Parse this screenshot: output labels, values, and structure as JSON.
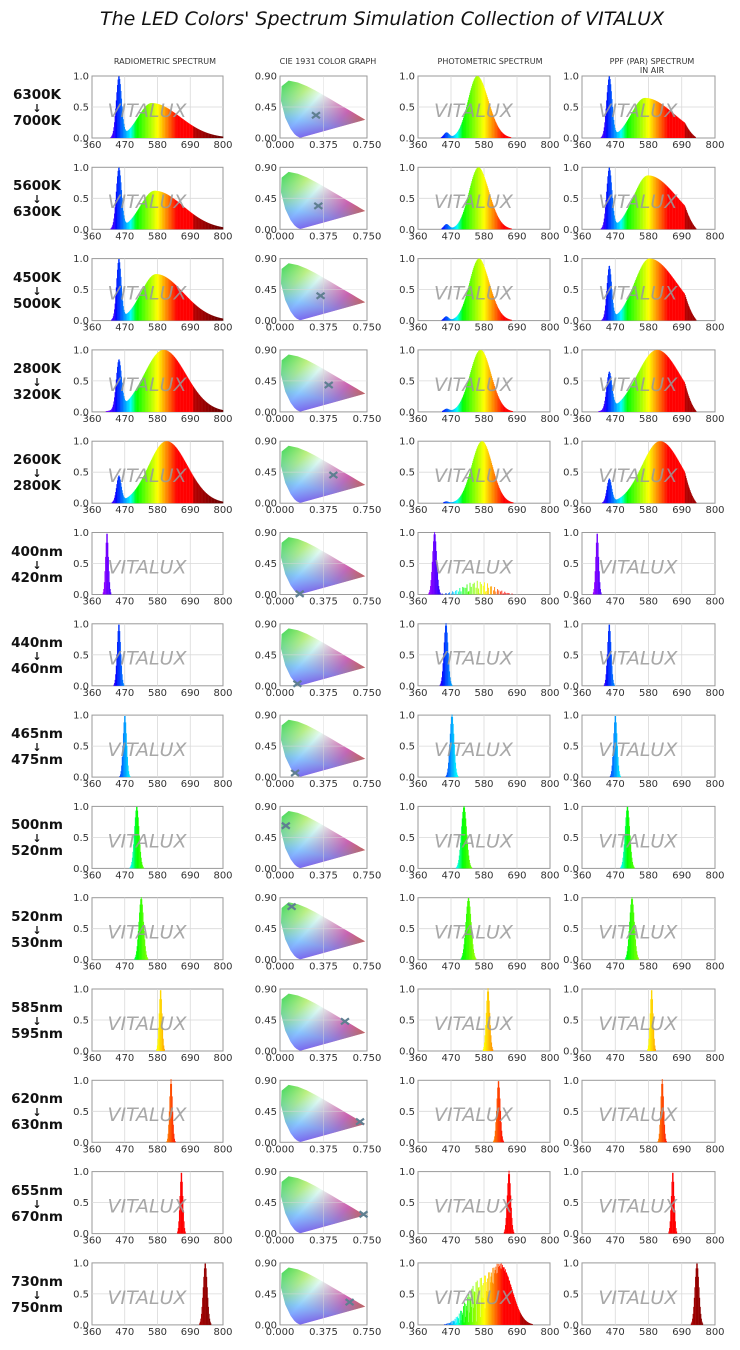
{
  "title": "The LED Colors' Spectrum Simulation Collection of VITALUX",
  "column_headers": [
    {
      "line1": "RADIOMETRIC SPECTRUM",
      "line2": ""
    },
    {
      "line1": "CIE 1931 COLOR GRAPH",
      "line2": ""
    },
    {
      "line1": "PHOTOMETRIC SPECTRUM",
      "line2": ""
    },
    {
      "line1": "PPF (PAR) SPECTRUM",
      "line2": "IN AIR"
    }
  ],
  "watermark": "VITALUX",
  "colors": {
    "axis": "#9a9a9a",
    "grid": "#d9d9d9",
    "marker": "#5f7f91"
  },
  "chart_data": {
    "type": "area",
    "spectrum_axis": {
      "x_ticks": [
        "360",
        "470",
        "580",
        "690",
        "800"
      ],
      "y_ticks": [
        "0.0",
        "0.5",
        "1.0"
      ],
      "xlim": [
        360,
        800
      ],
      "ylim": [
        0,
        1
      ]
    },
    "cie_axis": {
      "x_ticks": [
        "0.000",
        "0.375",
        "0.750"
      ],
      "y_ticks": [
        "0.00",
        "0.45",
        "0.90"
      ],
      "xlim": [
        0,
        0.75
      ],
      "ylim": [
        0,
        0.9
      ]
    },
    "rows": [
      {
        "label_top": "6300K",
        "label_bottom": "7000K",
        "kind": "white",
        "blue_amp": 1.0,
        "blue_peak": 450,
        "blue_width": 9,
        "phos_amp": 0.58,
        "phos_peak": 560,
        "phos_left": 45,
        "phos_right": 95,
        "cie": [
          0.31,
          0.33
        ],
        "ppf_blue": 1.0,
        "ppf_phos": 0.66
      },
      {
        "label_top": "5600K",
        "label_bottom": "6300K",
        "kind": "white",
        "blue_amp": 0.97,
        "blue_peak": 450,
        "blue_width": 9,
        "phos_amp": 0.62,
        "phos_peak": 570,
        "phos_left": 48,
        "phos_right": 95,
        "cie": [
          0.33,
          0.34
        ],
        "ppf_blue": 0.92,
        "ppf_phos": 0.82
      },
      {
        "label_top": "4500K",
        "label_bottom": "5000K",
        "kind": "white",
        "blue_amp": 0.98,
        "blue_peak": 450,
        "blue_width": 8,
        "phos_amp": 0.76,
        "phos_peak": 575,
        "phos_left": 50,
        "phos_right": 90,
        "cie": [
          0.35,
          0.36
        ],
        "ppf_blue": 0.86,
        "ppf_phos": 1.0
      },
      {
        "label_top": "2800K",
        "label_bottom": "3200K",
        "kind": "white",
        "blue_amp": 0.78,
        "blue_peak": 450,
        "blue_width": 9,
        "phos_amp": 1.0,
        "phos_peak": 600,
        "phos_left": 65,
        "phos_right": 75,
        "cie": [
          0.42,
          0.39
        ],
        "ppf_blue": 0.6,
        "ppf_phos": 1.0
      },
      {
        "label_top": "2600K",
        "label_bottom": "2800K",
        "kind": "white",
        "blue_amp": 0.42,
        "blue_peak": 450,
        "blue_width": 8,
        "phos_amp": 1.0,
        "phos_peak": 610,
        "phos_left": 60,
        "phos_right": 70,
        "cie": [
          0.46,
          0.41
        ],
        "ppf_blue": 0.38,
        "ppf_phos": 1.0
      },
      {
        "label_top": "400nm",
        "label_bottom": "420nm",
        "kind": "mono",
        "peak": 410,
        "width": 5,
        "cie": [
          0.17,
          0.01
        ],
        "photo": "violet"
      },
      {
        "label_top": "440nm",
        "label_bottom": "460nm",
        "kind": "mono",
        "peak": 450,
        "width": 6,
        "cie": [
          0.15,
          0.03
        ],
        "photo": "peak"
      },
      {
        "label_top": "465nm",
        "label_bottom": "475nm",
        "kind": "mono",
        "peak": 470,
        "width": 6,
        "cie": [
          0.13,
          0.06
        ],
        "photo": "peak"
      },
      {
        "label_top": "500nm",
        "label_bottom": "520nm",
        "kind": "mono",
        "peak": 510,
        "width": 8,
        "cie": [
          0.05,
          0.62
        ],
        "photo": "peak"
      },
      {
        "label_top": "520nm",
        "label_bottom": "530nm",
        "kind": "mono",
        "peak": 525,
        "width": 8,
        "cie": [
          0.1,
          0.77
        ],
        "photo": "peak"
      },
      {
        "label_top": "585nm",
        "label_bottom": "595nm",
        "kind": "mono",
        "peak": 590,
        "width": 5,
        "cie": [
          0.56,
          0.43
        ],
        "photo": "peak"
      },
      {
        "label_top": "620nm",
        "label_bottom": "630nm",
        "kind": "mono",
        "peak": 625,
        "width": 5,
        "cie": [
          0.69,
          0.3
        ],
        "photo": "peak"
      },
      {
        "label_top": "655nm",
        "label_bottom": "670nm",
        "kind": "mono",
        "peak": 660,
        "width": 5,
        "cie": [
          0.72,
          0.28
        ],
        "photo": "peak"
      },
      {
        "label_top": "730nm",
        "label_bottom": "750nm",
        "kind": "mono",
        "peak": 740,
        "width": 7,
        "cie": [
          0.6,
          0.33
        ],
        "photo": "nir"
      }
    ]
  }
}
